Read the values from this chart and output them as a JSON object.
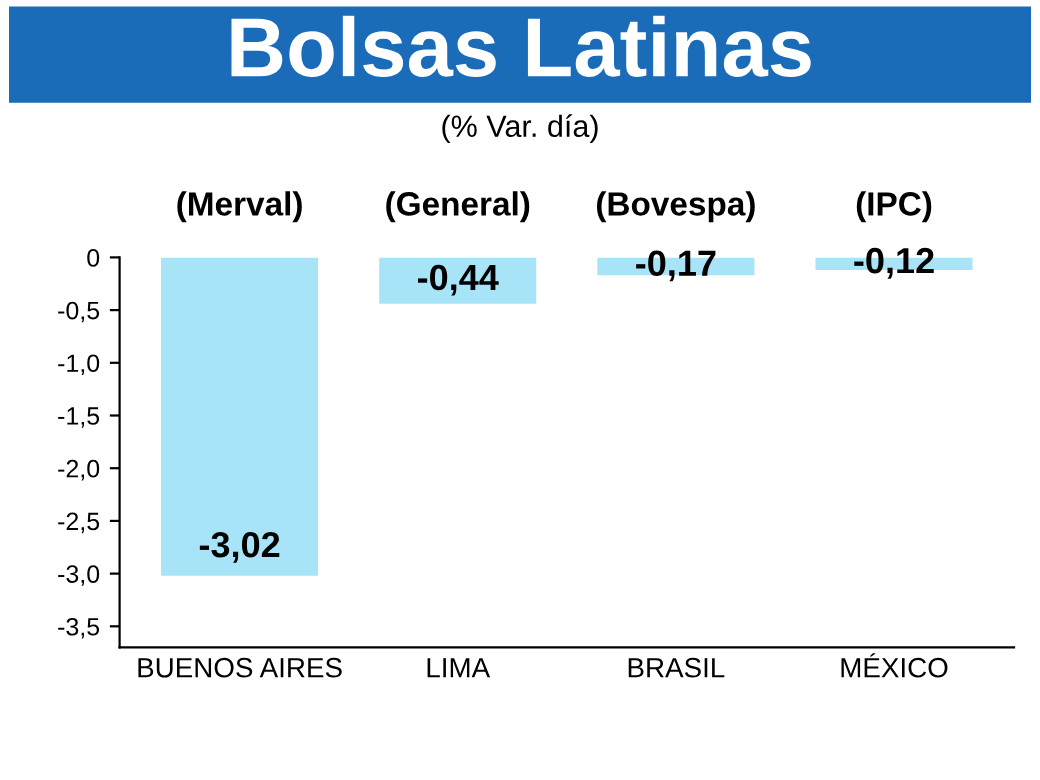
{
  "chart_data": {
    "type": "bar",
    "title": "Bolsas Latinas",
    "subtitle": "(% Var. día)",
    "categories": [
      "BUENOS AIRES",
      "LIMA",
      "BRASIL",
      "MÉXICO"
    ],
    "values": [
      -3.02,
      -0.44,
      -0.17,
      -0.12
    ],
    "value_labels": [
      "-3,02",
      "-0,44",
      "-0,17",
      "-0,12"
    ],
    "color": "#a8e4f7",
    "annotations": [
      "(Merval)",
      "(General)",
      "(Bovespa)",
      "(IPC)"
    ],
    "ylim": [
      -3.7,
      0
    ],
    "yticks": [
      {
        "value": 0,
        "label": "0"
      },
      {
        "value": -0.5,
        "label": "-0,5"
      },
      {
        "value": -1,
        "label": "-1,0"
      },
      {
        "value": -1.5,
        "label": "-1,5"
      },
      {
        "value": -2,
        "label": "-2,0"
      },
      {
        "value": -2.5,
        "label": "-2,5"
      },
      {
        "value": -3,
        "label": "-3,0"
      },
      {
        "value": -3.5,
        "label": "-3,5"
      }
    ],
    "grid": false,
    "legend": false
  }
}
